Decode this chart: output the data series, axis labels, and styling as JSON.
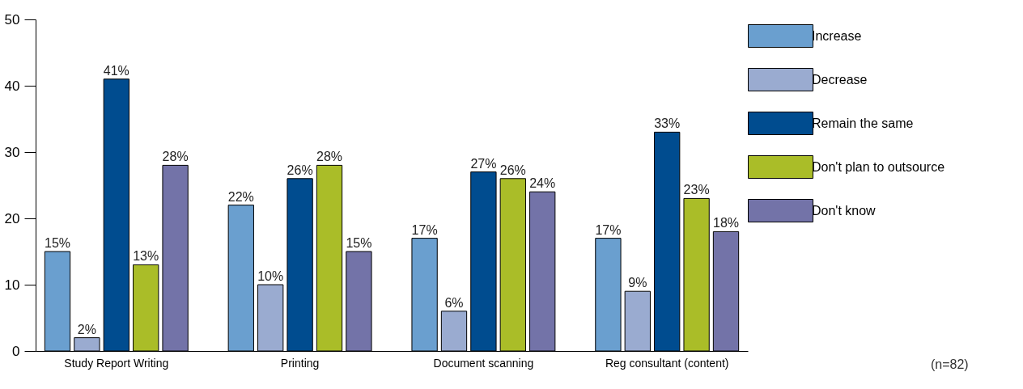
{
  "chart_data": {
    "type": "bar",
    "categories": [
      "Study Report Writing",
      "Printing",
      "Document scanning",
      "Reg consultant (content)"
    ],
    "series": [
      {
        "name": "Increase",
        "color": "#6a9fcf",
        "values": [
          15,
          22,
          17,
          17
        ],
        "value_labels": [
          "15%",
          "22%",
          "17%",
          "17%"
        ]
      },
      {
        "name": "Decrease",
        "color": "#9aabd0",
        "values": [
          2,
          10,
          6,
          9
        ],
        "value_labels": [
          "2%",
          "10%",
          "6%",
          "9%"
        ]
      },
      {
        "name": "Remain the same",
        "color": "#004c8f",
        "values": [
          41,
          26,
          27,
          33
        ],
        "value_labels": [
          "41%",
          "26%",
          "27%",
          "33%"
        ]
      },
      {
        "name": "Don't plan to outsource",
        "color": "#aabd28",
        "values": [
          13,
          28,
          26,
          23
        ],
        "value_labels": [
          "13%",
          "28%",
          "26%",
          "23%"
        ]
      },
      {
        "name": "Don't know",
        "color": "#7373a8",
        "values": [
          28,
          15,
          24,
          18
        ],
        "value_labels": [
          "28%",
          "15%",
          "24%",
          "18%"
        ]
      }
    ],
    "ylim": [
      0,
      50
    ],
    "yticks": [
      0,
      10,
      20,
      30,
      40,
      50
    ],
    "grid": false,
    "legend": "right",
    "annotations": [
      "(n=82)"
    ]
  }
}
